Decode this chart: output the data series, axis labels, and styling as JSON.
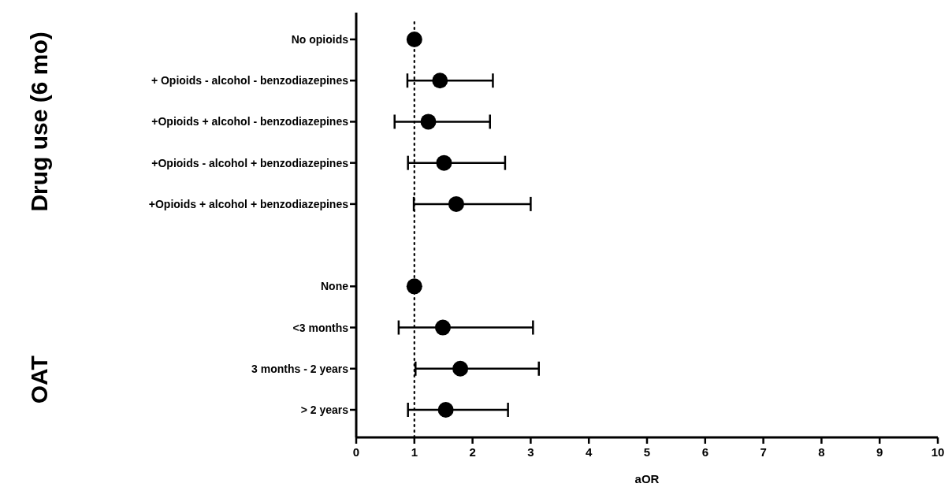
{
  "chart_data": {
    "type": "scatter",
    "orientation": "horizontal",
    "xlabel": "aOR",
    "annotations": [
      "Drug use (6 mo)",
      "OAT"
    ],
    "categories": [
      "No opioids",
      "+ Opioids - alcohol - benzodiazepines",
      "+Opioids + alcohol - benzodiazepines",
      "+Opioids - alcohol + benzodiazepines",
      "+Opioids + alcohol + benzodiazepines",
      null,
      "None",
      "<3 months",
      "3 months - 2 years",
      "> 2 years"
    ],
    "values": [
      1.0,
      1.44,
      1.24,
      1.51,
      1.72,
      null,
      1.0,
      1.49,
      1.79,
      1.54
    ],
    "errors": [
      null,
      [
        0.88,
        2.35
      ],
      [
        0.66,
        2.3
      ],
      [
        0.89,
        2.56
      ],
      [
        0.99,
        3.0
      ],
      null,
      null,
      [
        0.73,
        3.04
      ],
      [
        1.02,
        3.14
      ],
      [
        0.89,
        2.61
      ]
    ],
    "color": "#000000",
    "marker": "circle",
    "xlim": [
      0,
      10
    ],
    "xticks": [
      0,
      1,
      2,
      3,
      4,
      5,
      6,
      7,
      8,
      9,
      10
    ],
    "ref_lines": [
      {
        "axis": "x",
        "value": 1,
        "line_style": "dotted",
        "color": "#000000"
      }
    ]
  }
}
